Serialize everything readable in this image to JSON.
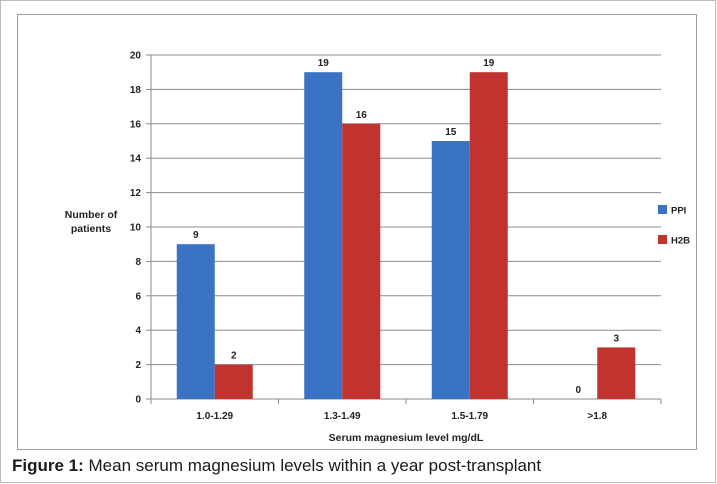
{
  "caption": {
    "label": "Figure 1:",
    "text": " Mean serum magnesium levels within a year post-transplant"
  },
  "chart_data": {
    "type": "bar",
    "categories": [
      "1.0-1.29",
      "1.3-1.49",
      "1.5-1.79",
      ">1.8"
    ],
    "series": [
      {
        "name": "PPI",
        "values": [
          9,
          19,
          15,
          0
        ],
        "color": "#3a72c4"
      },
      {
        "name": "H2B",
        "values": [
          2,
          16,
          19,
          3
        ],
        "color": "#c0332e"
      }
    ],
    "xlabel": "Serum magnesium level mg/dL",
    "ylabel": "Number of patients",
    "ylim": [
      0,
      20
    ],
    "yticks": [
      0,
      2,
      4,
      6,
      8,
      10,
      12,
      14,
      16,
      18,
      20
    ],
    "grid": true,
    "legend": "right"
  }
}
